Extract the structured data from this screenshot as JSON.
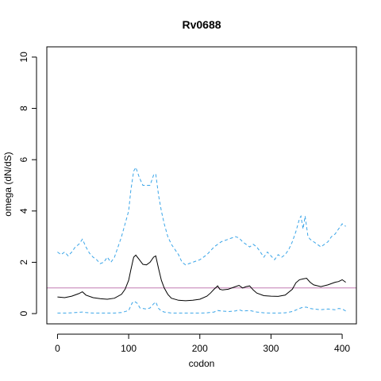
{
  "chart_data": {
    "type": "line",
    "title": "Rv0688",
    "xlabel": "codon",
    "ylabel": "omega (dN/dS)",
    "xlim": [
      -15,
      420
    ],
    "ylim": [
      -0.4,
      10.4
    ],
    "x_ticks": [
      "0",
      "100",
      "200",
      "300",
      "400"
    ],
    "y_ticks": [
      "0",
      "2",
      "4",
      "6",
      "8",
      "10"
    ],
    "grid": false,
    "reference_line": {
      "y": 1,
      "color": "#c27bb2"
    },
    "colors": {
      "estimate": "#000000",
      "ci": "#3aa5e8",
      "frame": "#000000"
    },
    "series": [
      {
        "style": "solid",
        "x": [
          0,
          10,
          20,
          30,
          35,
          40,
          50,
          60,
          70,
          80,
          90,
          95,
          100,
          103,
          107,
          110,
          115,
          120,
          125,
          130,
          135,
          138,
          142,
          146,
          150,
          155,
          160,
          170,
          180,
          190,
          200,
          210,
          215,
          220,
          225,
          228,
          232,
          240,
          250,
          255,
          260,
          265,
          270,
          275,
          280,
          290,
          300,
          310,
          320,
          330,
          335,
          340,
          345,
          350,
          355,
          360,
          370,
          380,
          390,
          395,
          400,
          405
        ],
        "y": [
          0.65,
          0.62,
          0.68,
          0.78,
          0.85,
          0.72,
          0.62,
          0.58,
          0.56,
          0.6,
          0.75,
          0.95,
          1.3,
          1.7,
          2.2,
          2.28,
          2.1,
          1.92,
          1.9,
          2.0,
          2.2,
          2.25,
          1.75,
          1.3,
          1.0,
          0.75,
          0.6,
          0.52,
          0.5,
          0.52,
          0.56,
          0.68,
          0.8,
          0.95,
          1.08,
          0.95,
          0.92,
          0.95,
          1.05,
          1.1,
          1.0,
          1.05,
          1.08,
          0.92,
          0.8,
          0.7,
          0.68,
          0.67,
          0.72,
          0.95,
          1.2,
          1.32,
          1.35,
          1.38,
          1.22,
          1.12,
          1.05,
          1.12,
          1.22,
          1.25,
          1.32,
          1.22
        ]
      },
      {
        "style": "dashed",
        "x": [
          0,
          5,
          10,
          15,
          20,
          25,
          30,
          35,
          40,
          45,
          50,
          55,
          60,
          65,
          70,
          75,
          80,
          85,
          90,
          95,
          100,
          103,
          107,
          110,
          115,
          120,
          125,
          130,
          135,
          138,
          142,
          146,
          150,
          155,
          160,
          165,
          170,
          175,
          180,
          190,
          200,
          210,
          220,
          230,
          240,
          250,
          255,
          260,
          265,
          270,
          275,
          280,
          285,
          290,
          295,
          300,
          305,
          310,
          315,
          320,
          325,
          330,
          335,
          340,
          342,
          345,
          348,
          350,
          352,
          355,
          360,
          365,
          370,
          375,
          380,
          385,
          390,
          395,
          400,
          405
        ],
        "y": [
          2.4,
          2.3,
          2.4,
          2.25,
          2.4,
          2.6,
          2.7,
          2.9,
          2.6,
          2.35,
          2.2,
          2.1,
          1.95,
          2.0,
          2.2,
          2.0,
          2.2,
          2.6,
          3.0,
          3.5,
          4.0,
          4.8,
          5.55,
          5.7,
          5.3,
          5.0,
          5.0,
          5.0,
          5.4,
          5.45,
          4.6,
          4.0,
          3.5,
          3.0,
          2.7,
          2.5,
          2.3,
          2.0,
          1.9,
          2.0,
          2.1,
          2.3,
          2.6,
          2.8,
          2.9,
          3.0,
          2.95,
          2.8,
          2.7,
          2.6,
          2.7,
          2.6,
          2.4,
          2.2,
          2.4,
          2.25,
          2.1,
          2.3,
          2.2,
          2.3,
          2.5,
          2.8,
          3.2,
          3.7,
          3.8,
          3.3,
          3.8,
          3.4,
          3.0,
          2.9,
          2.8,
          2.7,
          2.6,
          2.7,
          2.8,
          3.0,
          3.1,
          3.3,
          3.5,
          3.4
        ]
      },
      {
        "style": "dashed",
        "x": [
          0,
          10,
          20,
          30,
          35,
          40,
          50,
          60,
          70,
          80,
          90,
          100,
          105,
          108,
          112,
          116,
          120,
          125,
          130,
          135,
          138,
          142,
          146,
          150,
          160,
          170,
          180,
          190,
          200,
          210,
          220,
          225,
          230,
          240,
          250,
          255,
          260,
          270,
          280,
          290,
          300,
          310,
          320,
          330,
          340,
          345,
          350,
          355,
          360,
          370,
          380,
          390,
          395,
          400,
          405
        ],
        "y": [
          0.02,
          0.02,
          0.03,
          0.05,
          0.06,
          0.04,
          0.02,
          0.02,
          0.02,
          0.02,
          0.04,
          0.12,
          0.42,
          0.48,
          0.4,
          0.22,
          0.2,
          0.18,
          0.22,
          0.38,
          0.45,
          0.2,
          0.1,
          0.06,
          0.02,
          0.02,
          0.02,
          0.02,
          0.02,
          0.03,
          0.06,
          0.12,
          0.1,
          0.08,
          0.1,
          0.15,
          0.1,
          0.12,
          0.06,
          0.03,
          0.02,
          0.02,
          0.03,
          0.08,
          0.2,
          0.25,
          0.25,
          0.2,
          0.18,
          0.15,
          0.18,
          0.15,
          0.2,
          0.18,
          0.1
        ]
      }
    ]
  }
}
